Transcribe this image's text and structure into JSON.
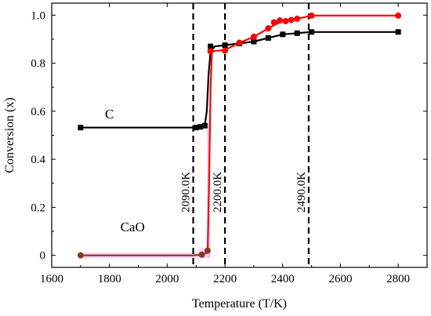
{
  "chart_data": {
    "type": "line",
    "xlabel": "Temperature (T/K)",
    "ylabel": "Conversion (x)",
    "xlim": [
      1600,
      2900
    ],
    "ylim": [
      -0.05,
      1.05
    ],
    "xticks": [
      1600,
      1800,
      2000,
      2200,
      2400,
      2600,
      2800
    ],
    "yticks": [
      0,
      0.2,
      0.4,
      0.6,
      0.8,
      1.0
    ],
    "xtick_labels": [
      "1600",
      "1800",
      "2000",
      "2200",
      "2400",
      "2600",
      "2800"
    ],
    "ytick_labels": [
      "0",
      "0.2",
      "0.4",
      "0.6",
      "0.8",
      "1.0"
    ],
    "series": [
      {
        "name": "C",
        "color": "#000000",
        "marker": "square",
        "points": [
          [
            1700,
            0.532
          ],
          [
            2100,
            0.532
          ],
          [
            2115,
            0.535
          ],
          [
            2130,
            0.54
          ],
          [
            2150,
            0.87
          ],
          [
            2200,
            0.875
          ],
          [
            2250,
            0.882
          ],
          [
            2300,
            0.89
          ],
          [
            2350,
            0.905
          ],
          [
            2400,
            0.92
          ],
          [
            2450,
            0.925
          ],
          [
            2500,
            0.93
          ],
          [
            2800,
            0.93
          ]
        ],
        "curve": [
          [
            1700,
            0.532
          ],
          [
            1900,
            0.532
          ],
          [
            2100,
            0.532
          ],
          [
            2130,
            0.54
          ],
          [
            2137,
            0.6
          ],
          [
            2143,
            0.75
          ],
          [
            2150,
            0.85
          ],
          [
            2165,
            0.87
          ],
          [
            2200,
            0.875
          ],
          [
            2300,
            0.89
          ],
          [
            2400,
            0.92
          ],
          [
            2500,
            0.93
          ],
          [
            2800,
            0.93
          ]
        ]
      },
      {
        "name": "CaO",
        "color": "#8B3A1A",
        "marker": "circle",
        "points": [
          [
            1700,
            0.0
          ],
          [
            2120,
            0.003
          ],
          [
            2140,
            0.02
          ]
        ],
        "curve": [
          [
            1700,
            0.0
          ],
          [
            2090,
            0.0
          ],
          [
            2120,
            0.003
          ],
          [
            2135,
            0.01
          ],
          [
            2145,
            0.03
          ]
        ]
      },
      {
        "name": "red",
        "color": "#ff0000",
        "marker": "circle",
        "points": [
          [
            2150,
            0.85
          ],
          [
            2200,
            0.852
          ],
          [
            2250,
            0.885
          ],
          [
            2300,
            0.91
          ],
          [
            2350,
            0.945
          ],
          [
            2370,
            0.97
          ],
          [
            2390,
            0.978
          ],
          [
            2410,
            0.975
          ],
          [
            2430,
            0.98
          ],
          [
            2450,
            0.985
          ],
          [
            2500,
            0.998
          ],
          [
            2800,
            0.998
          ]
        ],
        "curve": [
          [
            2140,
            0.02
          ],
          [
            2145,
            0.3
          ],
          [
            2150,
            0.7
          ],
          [
            2155,
            0.85
          ],
          [
            2200,
            0.855
          ],
          [
            2250,
            0.885
          ],
          [
            2300,
            0.91
          ],
          [
            2350,
            0.945
          ],
          [
            2400,
            0.978
          ],
          [
            2450,
            0.985
          ],
          [
            2500,
            0.998
          ],
          [
            2800,
            0.998
          ]
        ]
      }
    ],
    "vlines": [
      {
        "x": 2090,
        "label": "2090.0K"
      },
      {
        "x": 2200,
        "label": "2200.0K"
      },
      {
        "x": 2490,
        "label": "2490.0K"
      }
    ],
    "annotations": [
      {
        "text": "C",
        "at": [
          1800,
          0.57
        ]
      },
      {
        "text": "CaO",
        "at": [
          1880,
          0.1
        ]
      }
    ]
  }
}
